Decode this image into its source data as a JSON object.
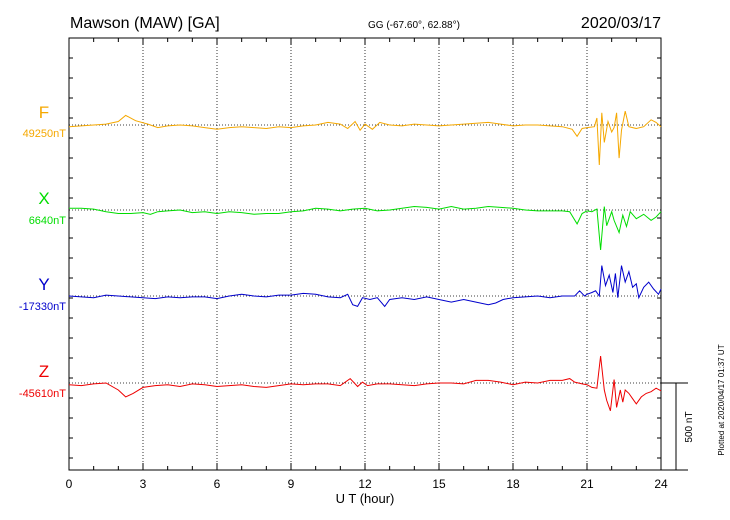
{
  "header": {
    "station": "Mawson (MAW)  [GA]",
    "coords": "GG (-67.60°,  62.88°)",
    "date": "2020/03/17"
  },
  "side_note": "Plotted at 2020/04/17 01:37 UT",
  "scale_label": "500 nT",
  "chart_data": {
    "type": "line",
    "xlabel": "U T (hour)",
    "xlim": [
      0,
      24
    ],
    "xticks": [
      "0",
      "3",
      "6",
      "9",
      "12",
      "15",
      "18",
      "21",
      "24"
    ],
    "scale_bar_nT": 500,
    "colors": {
      "F": "#f5a800",
      "X": "#00dd00",
      "Y": "#0000cc",
      "Z": "#ee0000",
      "axis": "#000000"
    },
    "series": [
      {
        "name": "F",
        "baseline_label": "49250nT",
        "baseline_nT": 49250,
        "points": [
          [
            0,
            -10
          ],
          [
            0.5,
            -5
          ],
          [
            1,
            0
          ],
          [
            1.5,
            5
          ],
          [
            2,
            20
          ],
          [
            2.3,
            55
          ],
          [
            2.7,
            25
          ],
          [
            3.2,
            5
          ],
          [
            3.6,
            -15
          ],
          [
            4,
            -5
          ],
          [
            4.5,
            0
          ],
          [
            5,
            -5
          ],
          [
            5.5,
            -15
          ],
          [
            6,
            -25
          ],
          [
            6.5,
            -15
          ],
          [
            7,
            -10
          ],
          [
            7.5,
            -15
          ],
          [
            8,
            -20
          ],
          [
            8.5,
            -10
          ],
          [
            9,
            -15
          ],
          [
            9.5,
            -5
          ],
          [
            10,
            0
          ],
          [
            10.5,
            15
          ],
          [
            11,
            5
          ],
          [
            11.3,
            -20
          ],
          [
            11.6,
            20
          ],
          [
            11.8,
            -30
          ],
          [
            12,
            5
          ],
          [
            12.3,
            -25
          ],
          [
            12.6,
            15
          ],
          [
            13,
            0
          ],
          [
            13.5,
            -5
          ],
          [
            14,
            5
          ],
          [
            15,
            -5
          ],
          [
            15.5,
            0
          ],
          [
            16,
            5
          ],
          [
            16.5,
            10
          ],
          [
            17,
            15
          ],
          [
            17.5,
            5
          ],
          [
            18,
            -5
          ],
          [
            18.5,
            0
          ],
          [
            19,
            0
          ],
          [
            19.5,
            -5
          ],
          [
            20,
            -10
          ],
          [
            20.4,
            -25
          ],
          [
            20.6,
            -65
          ],
          [
            20.8,
            -20
          ],
          [
            21,
            -15
          ],
          [
            21.3,
            -10
          ],
          [
            21.4,
            40
          ],
          [
            21.5,
            -230
          ],
          [
            21.6,
            70
          ],
          [
            21.7,
            -100
          ],
          [
            21.85,
            20
          ],
          [
            22,
            -40
          ],
          [
            22.1,
            -15
          ],
          [
            22.2,
            70
          ],
          [
            22.3,
            -190
          ],
          [
            22.4,
            -30
          ],
          [
            22.55,
            80
          ],
          [
            22.7,
            -10
          ],
          [
            23,
            -20
          ],
          [
            23.3,
            -10
          ],
          [
            23.6,
            30
          ],
          [
            23.8,
            15
          ],
          [
            24,
            -10
          ]
        ]
      },
      {
        "name": "X",
        "baseline_label": "6640nT",
        "baseline_nT": 6640,
        "points": [
          [
            0,
            10
          ],
          [
            0.5,
            10
          ],
          [
            1,
            5
          ],
          [
            1.5,
            -10
          ],
          [
            2,
            -20
          ],
          [
            2.5,
            -20
          ],
          [
            3,
            -15
          ],
          [
            3.3,
            -25
          ],
          [
            3.6,
            -10
          ],
          [
            4,
            -5
          ],
          [
            4.5,
            0
          ],
          [
            5,
            -15
          ],
          [
            5.5,
            -10
          ],
          [
            6,
            -20
          ],
          [
            6.5,
            -10
          ],
          [
            7,
            -15
          ],
          [
            7.5,
            -25
          ],
          [
            8,
            -20
          ],
          [
            8.5,
            -20
          ],
          [
            9,
            -10
          ],
          [
            9.5,
            -5
          ],
          [
            10,
            10
          ],
          [
            10.5,
            5
          ],
          [
            11,
            -5
          ],
          [
            11.5,
            5
          ],
          [
            12,
            10
          ],
          [
            12.5,
            -5
          ],
          [
            13,
            0
          ],
          [
            13.5,
            10
          ],
          [
            14,
            20
          ],
          [
            14.5,
            15
          ],
          [
            15,
            5
          ],
          [
            15.5,
            20
          ],
          [
            16,
            5
          ],
          [
            16.5,
            10
          ],
          [
            17,
            20
          ],
          [
            17.5,
            15
          ],
          [
            18,
            10
          ],
          [
            18.5,
            0
          ],
          [
            19,
            -5
          ],
          [
            19.5,
            -5
          ],
          [
            20,
            -5
          ],
          [
            20.3,
            -10
          ],
          [
            20.6,
            -80
          ],
          [
            20.8,
            -20
          ],
          [
            21,
            -5
          ],
          [
            21.2,
            -10
          ],
          [
            21.4,
            5
          ],
          [
            21.55,
            -230
          ],
          [
            21.7,
            20
          ],
          [
            21.8,
            -90
          ],
          [
            22,
            -10
          ],
          [
            22.1,
            -60
          ],
          [
            22.3,
            -130
          ],
          [
            22.45,
            -30
          ],
          [
            22.6,
            -95
          ],
          [
            22.75,
            -10
          ],
          [
            23,
            -50
          ],
          [
            23.3,
            -25
          ],
          [
            23.6,
            -60
          ],
          [
            23.8,
            -40
          ],
          [
            24,
            -10
          ]
        ]
      },
      {
        "name": "Y",
        "baseline_label": "-17330nT",
        "baseline_nT": -17330,
        "points": [
          [
            0,
            0
          ],
          [
            0.5,
            -5
          ],
          [
            1,
            -10
          ],
          [
            1.5,
            5
          ],
          [
            2,
            0
          ],
          [
            2.5,
            -5
          ],
          [
            3,
            -10
          ],
          [
            3.5,
            -15
          ],
          [
            4,
            -5
          ],
          [
            4.5,
            -10
          ],
          [
            5,
            -5
          ],
          [
            5.5,
            -5
          ],
          [
            6,
            -15
          ],
          [
            6.5,
            0
          ],
          [
            7,
            10
          ],
          [
            7.5,
            0
          ],
          [
            8,
            -5
          ],
          [
            8.5,
            5
          ],
          [
            9,
            5
          ],
          [
            9.5,
            15
          ],
          [
            10,
            10
          ],
          [
            10.5,
            -5
          ],
          [
            11,
            -10
          ],
          [
            11.3,
            10
          ],
          [
            11.5,
            -50
          ],
          [
            11.7,
            -60
          ],
          [
            11.9,
            -10
          ],
          [
            12.2,
            -20
          ],
          [
            12.5,
            -10
          ],
          [
            12.8,
            -60
          ],
          [
            13,
            -20
          ],
          [
            13.5,
            -10
          ],
          [
            14,
            -20
          ],
          [
            14.5,
            -5
          ],
          [
            15,
            -20
          ],
          [
            15.5,
            -35
          ],
          [
            16,
            -20
          ],
          [
            16.5,
            -35
          ],
          [
            17,
            -50
          ],
          [
            17.3,
            -40
          ],
          [
            17.6,
            -20
          ],
          [
            18,
            -10
          ],
          [
            18.5,
            -5
          ],
          [
            19,
            0
          ],
          [
            19.5,
            -10
          ],
          [
            20,
            0
          ],
          [
            20.5,
            0
          ],
          [
            20.7,
            30
          ],
          [
            20.9,
            0
          ],
          [
            21,
            10
          ],
          [
            21.2,
            20
          ],
          [
            21.35,
            30
          ],
          [
            21.5,
            0
          ],
          [
            21.6,
            175
          ],
          [
            21.75,
            60
          ],
          [
            21.9,
            120
          ],
          [
            22.05,
            20
          ],
          [
            22.15,
            130
          ],
          [
            22.25,
            -10
          ],
          [
            22.4,
            175
          ],
          [
            22.55,
            80
          ],
          [
            22.7,
            140
          ],
          [
            22.85,
            50
          ],
          [
            23,
            70
          ],
          [
            23.1,
            -10
          ],
          [
            23.3,
            50
          ],
          [
            23.5,
            80
          ],
          [
            23.7,
            40
          ],
          [
            23.9,
            10
          ],
          [
            24,
            40
          ]
        ]
      },
      {
        "name": "Z",
        "baseline_label": "-45610nT",
        "baseline_nT": -45610,
        "points": [
          [
            0,
            -10
          ],
          [
            0.5,
            -15
          ],
          [
            1,
            -5
          ],
          [
            1.5,
            0
          ],
          [
            2,
            -40
          ],
          [
            2.3,
            -80
          ],
          [
            2.6,
            -60
          ],
          [
            3,
            -25
          ],
          [
            3.5,
            -15
          ],
          [
            4,
            -10
          ],
          [
            4.5,
            -20
          ],
          [
            5,
            -5
          ],
          [
            5.5,
            -10
          ],
          [
            6,
            -20
          ],
          [
            6.5,
            -15
          ],
          [
            7,
            -10
          ],
          [
            7.5,
            -20
          ],
          [
            8,
            -25
          ],
          [
            8.5,
            -15
          ],
          [
            9,
            -5
          ],
          [
            9.5,
            -10
          ],
          [
            10,
            -5
          ],
          [
            10.5,
            -5
          ],
          [
            11,
            -15
          ],
          [
            11.4,
            25
          ],
          [
            11.7,
            -20
          ],
          [
            11.9,
            5
          ],
          [
            12.1,
            -15
          ],
          [
            12.5,
            -5
          ],
          [
            13,
            -5
          ],
          [
            13.5,
            -10
          ],
          [
            14,
            -15
          ],
          [
            14.5,
            -5
          ],
          [
            15,
            0
          ],
          [
            15.5,
            0
          ],
          [
            16,
            -5
          ],
          [
            16.5,
            15
          ],
          [
            17,
            15
          ],
          [
            17.5,
            5
          ],
          [
            18,
            -10
          ],
          [
            18.5,
            5
          ],
          [
            19,
            0
          ],
          [
            19.5,
            15
          ],
          [
            20,
            15
          ],
          [
            20.3,
            25
          ],
          [
            20.5,
            5
          ],
          [
            20.8,
            -5
          ],
          [
            21,
            -10
          ],
          [
            21.2,
            -25
          ],
          [
            21.4,
            -30
          ],
          [
            21.55,
            155
          ],
          [
            21.7,
            -40
          ],
          [
            21.8,
            -100
          ],
          [
            21.95,
            -160
          ],
          [
            22.1,
            20
          ],
          [
            22.2,
            -140
          ],
          [
            22.35,
            -40
          ],
          [
            22.45,
            -110
          ],
          [
            22.55,
            -40
          ],
          [
            22.7,
            -60
          ],
          [
            22.85,
            -90
          ],
          [
            23,
            -120
          ],
          [
            23.2,
            -80
          ],
          [
            23.4,
            -60
          ],
          [
            23.6,
            -50
          ],
          [
            23.8,
            -30
          ],
          [
            24,
            -45
          ]
        ]
      }
    ]
  }
}
